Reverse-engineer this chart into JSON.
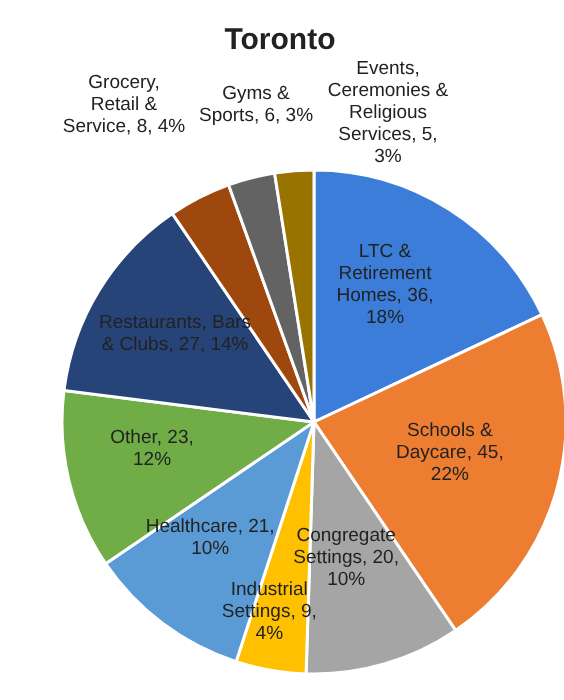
{
  "chart_data": {
    "type": "pie",
    "title": "Toronto",
    "categories": [
      "LTC & Retirement Homes",
      "Schools & Daycare",
      "Congregate Settings",
      "Industrial Settings",
      "Healthcare",
      "Other",
      "Restaurants, Bars & Clubs",
      "Grocery, Retail & Service",
      "Gyms & Sports",
      "Events, Ceremonies & Religious Services"
    ],
    "values": [
      36,
      45,
      20,
      9,
      21,
      23,
      27,
      8,
      6,
      5
    ],
    "value_labels": [
      "36, 18%",
      "45, 22%",
      "20, 10%",
      "9, 4%",
      "21, 10%",
      "23, 12%",
      "27, 14%",
      "8, 4%",
      "6, 3%",
      "5, 3%"
    ],
    "colors": [
      "#3b7dd8",
      "#ed7d31",
      "#a5a5a5",
      "#ffc000",
      "#5b9bd5",
      "#70ad47",
      "#264478",
      "#9e480e",
      "#636363",
      "#997300"
    ]
  }
}
